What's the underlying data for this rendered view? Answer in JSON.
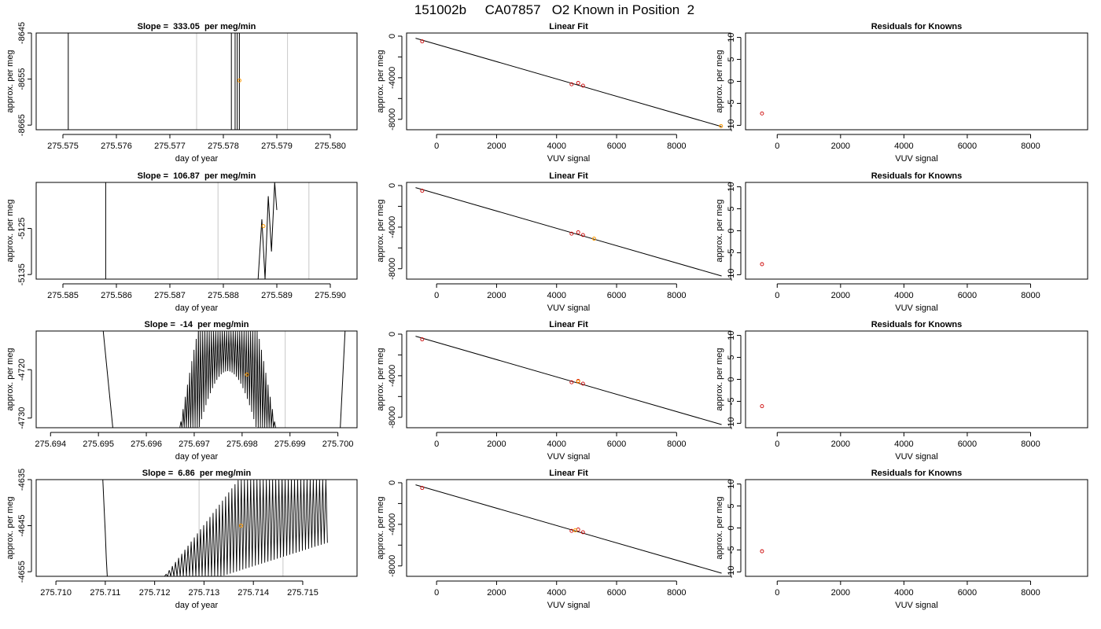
{
  "page_title": "151002b     CA07857   O2 Known in Position  2",
  "colors": {
    "axis": "#000000",
    "trace": "#000000",
    "vline": "#c8c8c8",
    "known": "#cc0000",
    "current": "#ff9900"
  },
  "chart_data": [
    {
      "type": "line",
      "title": "Slope =  333.05  per meg/min",
      "xlabel": "day of year",
      "ylabel": "approx. per meg",
      "xlim": [
        275.5745,
        275.5805
      ],
      "ylim": [
        -8666,
        -8645
      ],
      "xticks": [
        "275.575",
        "275.576",
        "275.577",
        "275.578",
        "275.579",
        "275.580"
      ],
      "xtick_values": [
        275.575,
        275.576,
        275.577,
        275.578,
        275.579,
        275.58
      ],
      "yticks": [
        "-8665",
        "-8655",
        "-8645"
      ],
      "ytick_values": [
        -8665,
        -8655,
        -8645
      ],
      "vlines": [
        275.5775,
        275.5792
      ],
      "segments": [
        [
          [
            275.5751,
            -8666
          ],
          [
            275.5751,
            -8645
          ]
        ],
        [
          [
            275.57815,
            -8666
          ],
          [
            275.57815,
            -8645
          ]
        ],
        [
          [
            275.57822,
            -8666
          ],
          [
            275.57822,
            -8645
          ]
        ],
        [
          [
            275.57826,
            -8666
          ],
          [
            275.57826,
            -8645
          ]
        ],
        [
          [
            275.5783,
            -8666
          ],
          [
            275.5783,
            -8645
          ]
        ]
      ],
      "point": [
        275.5783,
        -8655.3
      ]
    },
    {
      "type": "line",
      "title": "Linear Fit",
      "xlabel": "VUV signal",
      "ylabel": "approx. per meg",
      "xlim": [
        -1000,
        9800
      ],
      "ylim": [
        -9000,
        300
      ],
      "xticks": [
        "0",
        "2000",
        "4000",
        "6000",
        "8000"
      ],
      "xtick_values": [
        0,
        2000,
        4000,
        6000,
        8000
      ],
      "yticks": [
        "-8000",
        "-4000",
        "0"
      ],
      "ytick_values": [
        -8000,
        -4000,
        0
      ],
      "yminor_ticks": [
        -6000,
        -2000
      ],
      "fit_line": [
        [
          -700,
          -200
        ],
        [
          9500,
          -8700
        ]
      ],
      "knowns": [
        [
          -480,
          -500
        ],
        [
          4500,
          -4630
        ],
        [
          4720,
          -4500
        ],
        [
          4880,
          -4760
        ]
      ],
      "point": [
        9480,
        -8650
      ]
    },
    {
      "type": "scatter",
      "title": "Residuals for Knowns",
      "xlabel": "VUV signal",
      "ylabel": "approx. per meg",
      "xlim": [
        -1000,
        9800
      ],
      "ylim": [
        -11,
        11
      ],
      "xticks": [
        "0",
        "2000",
        "4000",
        "6000",
        "8000"
      ],
      "xtick_values": [
        0,
        2000,
        4000,
        6000,
        8000
      ],
      "yticks": [
        "-10",
        "-5",
        "0",
        "5",
        "10"
      ],
      "ytick_values": [
        -10,
        -5,
        0,
        5,
        10
      ],
      "knowns": [
        [
          -480,
          -7.3
        ]
      ]
    },
    {
      "type": "line",
      "title": "Slope =  106.87  per meg/min",
      "xlabel": "day of year",
      "ylabel": "approx. per meg",
      "xlim": [
        275.5845,
        275.5905
      ],
      "ylim": [
        -5136,
        -5115
      ],
      "xticks": [
        "275.585",
        "275.586",
        "275.587",
        "275.588",
        "275.589",
        "275.590"
      ],
      "xtick_values": [
        275.585,
        275.586,
        275.587,
        275.588,
        275.589,
        275.59
      ],
      "yticks": [
        "-5135",
        "-5125"
      ],
      "ytick_values": [
        -5135,
        -5125
      ],
      "vlines": [
        275.5879,
        275.5896
      ],
      "segments": [
        [
          [
            275.5858,
            -5136
          ],
          [
            275.5858,
            -5115
          ]
        ],
        [
          [
            275.58865,
            -5136
          ],
          [
            275.58872,
            -5123
          ],
          [
            275.58878,
            -5136
          ],
          [
            275.58884,
            -5118
          ],
          [
            275.5889,
            -5130
          ],
          [
            275.58896,
            -5115
          ],
          [
            275.589,
            -5121
          ]
        ]
      ],
      "point": [
        275.58875,
        -5124.5
      ]
    },
    {
      "type": "line",
      "title": "Linear Fit",
      "xlabel": "VUV signal",
      "ylabel": "approx. per meg",
      "xlim": [
        -1000,
        9800
      ],
      "ylim": [
        -9000,
        300
      ],
      "xticks": [
        "0",
        "2000",
        "4000",
        "6000",
        "8000"
      ],
      "xtick_values": [
        0,
        2000,
        4000,
        6000,
        8000
      ],
      "yticks": [
        "-8000",
        "-4000",
        "0"
      ],
      "ytick_values": [
        -8000,
        -4000,
        0
      ],
      "yminor_ticks": [
        -6000,
        -2000
      ],
      "fit_line": [
        [
          -700,
          -200
        ],
        [
          9500,
          -8700
        ]
      ],
      "knowns": [
        [
          -480,
          -500
        ],
        [
          4500,
          -4630
        ],
        [
          4720,
          -4500
        ],
        [
          4880,
          -4760
        ]
      ],
      "point": [
        5250,
        -5110
      ]
    },
    {
      "type": "scatter",
      "title": "Residuals for Knowns",
      "xlabel": "VUV signal",
      "ylabel": "approx. per meg",
      "xlim": [
        -1000,
        9800
      ],
      "ylim": [
        -11,
        11
      ],
      "xticks": [
        "0",
        "2000",
        "4000",
        "6000",
        "8000"
      ],
      "xtick_values": [
        0,
        2000,
        4000,
        6000,
        8000
      ],
      "yticks": [
        "-10",
        "-5",
        "0",
        "5",
        "10"
      ],
      "ytick_values": [
        -10,
        -5,
        0,
        5,
        10
      ],
      "knowns": [
        [
          -480,
          -7.6
        ]
      ]
    },
    {
      "type": "line",
      "title": "Slope =  -14  per meg/min",
      "xlabel": "day of year",
      "ylabel": "approx. per meg",
      "xlim": [
        275.6937,
        275.7004
      ],
      "ylim": [
        -4732,
        -4712
      ],
      "xticks": [
        "275.694",
        "275.695",
        "275.696",
        "275.697",
        "275.698",
        "275.699",
        "275.700"
      ],
      "xtick_values": [
        275.694,
        275.695,
        275.696,
        275.697,
        275.698,
        275.699,
        275.7
      ],
      "yticks": [
        "-4730",
        "-4720"
      ],
      "ytick_values": [
        -4730,
        -4720
      ],
      "vlines": [
        275.6971,
        275.6989
      ],
      "segments": [
        [
          [
            275.6951,
            -4712
          ],
          [
            275.6953,
            -4732
          ]
        ],
        [
          [
            275.70005,
            -4732
          ],
          [
            275.70015,
            -4712
          ]
        ]
      ],
      "oscillation": {
        "x0": 275.6967,
        "x1": 275.6987,
        "cycles": 44,
        "top": -4712,
        "bottom": -4732,
        "floor_edge": -4732
      },
      "point": [
        275.6981,
        -4721
      ]
    },
    {
      "type": "line",
      "title": "Linear Fit",
      "xlabel": "VUV signal",
      "ylabel": "approx. per meg",
      "xlim": [
        -1000,
        9800
      ],
      "ylim": [
        -9000,
        300
      ],
      "xticks": [
        "0",
        "2000",
        "4000",
        "6000",
        "8000"
      ],
      "xtick_values": [
        0,
        2000,
        4000,
        6000,
        8000
      ],
      "yticks": [
        "-8000",
        "-4000",
        "0"
      ],
      "ytick_values": [
        -8000,
        -4000,
        0
      ],
      "yminor_ticks": [
        -6000,
        -2000
      ],
      "fit_line": [
        [
          -700,
          -200
        ],
        [
          9500,
          -8700
        ]
      ],
      "knowns": [
        [
          -480,
          -500
        ],
        [
          4500,
          -4630
        ],
        [
          4720,
          -4500
        ],
        [
          4880,
          -4760
        ]
      ],
      "point": [
        4720,
        -4560
      ]
    },
    {
      "type": "scatter",
      "title": "Residuals for Knowns",
      "xlabel": "VUV signal",
      "ylabel": "approx. per meg",
      "xlim": [
        -1000,
        9800
      ],
      "ylim": [
        -11,
        11
      ],
      "xticks": [
        "0",
        "2000",
        "4000",
        "6000",
        "8000"
      ],
      "xtick_values": [
        0,
        2000,
        4000,
        6000,
        8000
      ],
      "yticks": [
        "-10",
        "-5",
        "0",
        "5",
        "10"
      ],
      "ytick_values": [
        -10,
        -5,
        0,
        5,
        10
      ],
      "knowns": [
        [
          -480,
          -6.1
        ]
      ]
    },
    {
      "type": "line",
      "title": "Slope =  6.86  per meg/min",
      "xlabel": "day of year",
      "ylabel": "approx. per meg",
      "xlim": [
        275.7096,
        275.7161
      ],
      "ylim": [
        -4656,
        -4635
      ],
      "xticks": [
        "275.710",
        "275.711",
        "275.712",
        "275.713",
        "275.714",
        "275.715"
      ],
      "xtick_values": [
        275.71,
        275.711,
        275.712,
        275.713,
        275.714,
        275.715
      ],
      "yticks": [
        "-4655",
        "-4645",
        "-4635"
      ],
      "ytick_values": [
        -4655,
        -4645,
        -4635
      ],
      "vlines": [
        275.7129,
        275.7146
      ],
      "segments": [
        [
          [
            275.71095,
            -4635
          ],
          [
            275.71098,
            -4642
          ],
          [
            275.711,
            -4646.5
          ],
          [
            275.71102,
            -4652
          ],
          [
            275.71104,
            -4656
          ]
        ]
      ],
      "oscillation": {
        "x0": 275.7122,
        "x1": 275.7155,
        "cycles": 52,
        "top": -4635,
        "bottom": -4656,
        "floor_edge": -4656,
        "ramp_to": -4648
      },
      "point": [
        275.71375,
        -4645
      ]
    },
    {
      "type": "line",
      "title": "Linear Fit",
      "xlabel": "VUV signal",
      "ylabel": "approx. per meg",
      "xlim": [
        -1000,
        9800
      ],
      "ylim": [
        -9000,
        300
      ],
      "xticks": [
        "0",
        "2000",
        "4000",
        "6000",
        "8000"
      ],
      "xtick_values": [
        0,
        2000,
        4000,
        6000,
        8000
      ],
      "yticks": [
        "-8000",
        "-4000",
        "0"
      ],
      "ytick_values": [
        -8000,
        -4000,
        0
      ],
      "yminor_ticks": [
        -6000,
        -2000
      ],
      "fit_line": [
        [
          -700,
          -200
        ],
        [
          9500,
          -8700
        ]
      ],
      "knowns": [
        [
          -480,
          -500
        ],
        [
          4500,
          -4630
        ],
        [
          4720,
          -4500
        ],
        [
          4880,
          -4760
        ]
      ],
      "point": [
        4620,
        -4580
      ]
    },
    {
      "type": "scatter",
      "title": "Residuals for Knowns",
      "xlabel": "VUV signal",
      "ylabel": "approx. per meg",
      "xlim": [
        -1000,
        9800
      ],
      "ylim": [
        -11,
        11
      ],
      "xticks": [
        "0",
        "2000",
        "4000",
        "6000",
        "8000"
      ],
      "xtick_values": [
        0,
        2000,
        4000,
        6000,
        8000
      ],
      "yticks": [
        "-10",
        "-5",
        "0",
        "5",
        "10"
      ],
      "ytick_values": [
        -10,
        -5,
        0,
        5,
        10
      ],
      "knowns": [
        [
          -480,
          -5.3
        ]
      ]
    }
  ]
}
